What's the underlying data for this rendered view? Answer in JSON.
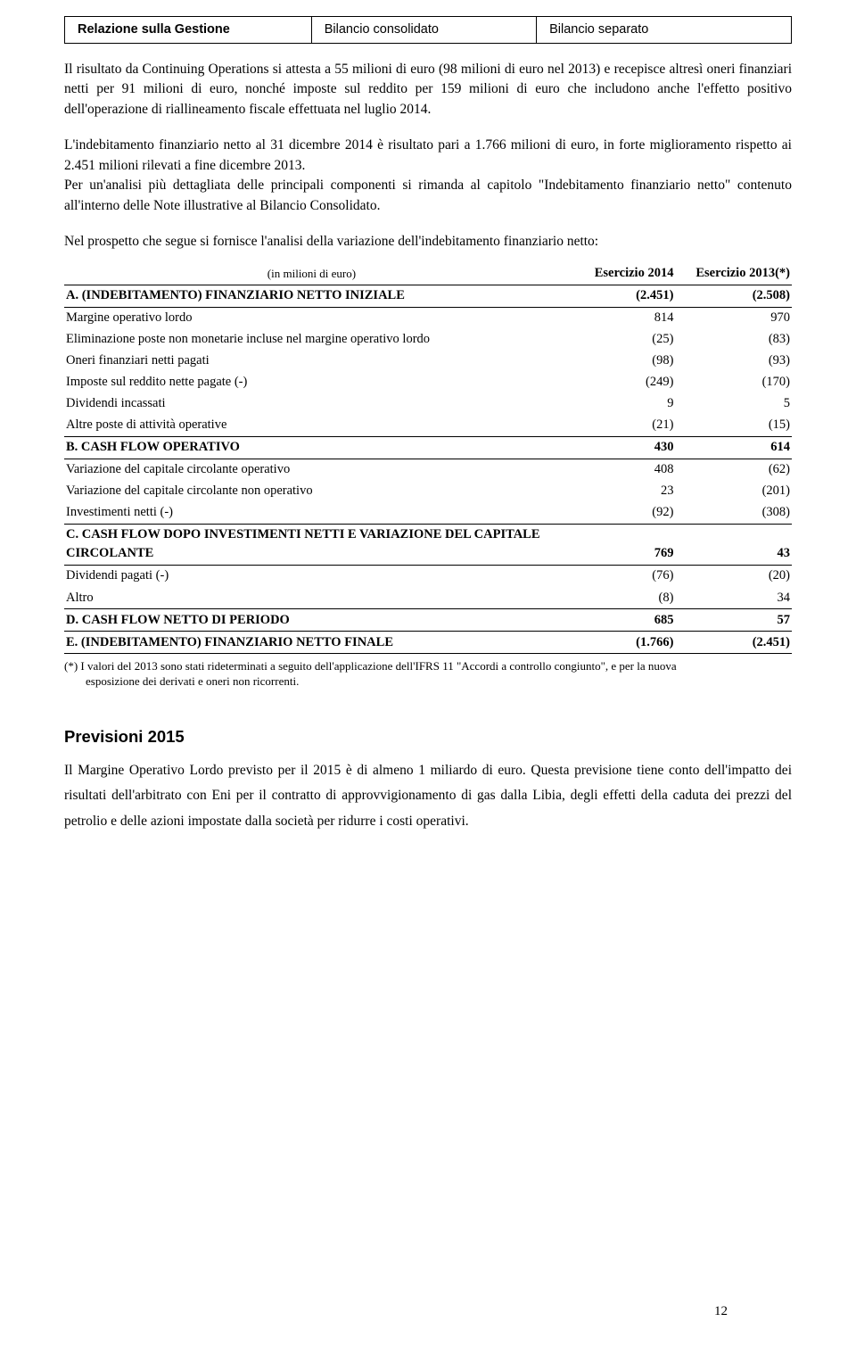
{
  "nav": {
    "tab1": "Relazione sulla Gestione",
    "tab2": "Bilancio consolidato",
    "tab3": "Bilancio separato"
  },
  "para1": "Il risultato da Continuing Operations si attesta a 55 milioni di euro (98 milioni di euro nel 2013) e recepisce altresì oneri finanziari netti per 91 milioni di euro, nonché imposte sul reddito per 159 milioni di euro che includono anche l'effetto positivo dell'operazione di riallineamento fiscale effettuata nel luglio 2014.",
  "para2": "L'indebitamento finanziario netto al 31 dicembre 2014 è risultato pari a 1.766 milioni di euro, in forte miglioramento rispetto ai 2.451 milioni rilevati a fine dicembre 2013.",
  "para3": "Per un'analisi più dettagliata delle principali componenti si rimanda al capitolo \"Indebitamento finanziario netto\" contenuto all'interno delle Note illustrative al Bilancio Consolidato.",
  "intro": "Nel prospetto che segue si fornisce l'analisi della variazione dell'indebitamento finanziario netto:",
  "table": {
    "header_label": "(in milioni di euro)",
    "col1": "Esercizio 2014",
    "col2": "Esercizio 2013(*)",
    "rows": [
      {
        "label": "A. (INDEBITAMENTO) FINANZIARIO NETTO INIZIALE",
        "v1": "(2.451)",
        "v2": "(2.508)",
        "bold": true,
        "topline": true
      },
      {
        "label": "Margine operativo lordo",
        "v1": "814",
        "v2": "970",
        "topline": true
      },
      {
        "label": "Eliminazione poste non monetarie incluse nel margine operativo lordo",
        "v1": "(25)",
        "v2": "(83)"
      },
      {
        "label": "Oneri finanziari netti pagati",
        "v1": "(98)",
        "v2": "(93)"
      },
      {
        "label": "Imposte sul reddito nette pagate (-)",
        "v1": "(249)",
        "v2": "(170)"
      },
      {
        "label": "Dividendi incassati",
        "v1": "9",
        "v2": "5"
      },
      {
        "label": "Altre poste di attività operative",
        "v1": "(21)",
        "v2": "(15)",
        "underline": true
      },
      {
        "label": "B. CASH FLOW OPERATIVO",
        "v1": "430",
        "v2": "614",
        "bold": true
      },
      {
        "label": "Variazione del capitale circolante operativo",
        "v1": "408",
        "v2": "(62)",
        "topline": true
      },
      {
        "label": "Variazione del capitale circolante non operativo",
        "v1": "23",
        "v2": "(201)"
      },
      {
        "label": "Investimenti netti (-)",
        "v1": "(92)",
        "v2": "(308)",
        "underline": true
      },
      {
        "label": "C. CASH FLOW DOPO INVESTIMENTI NETTI E VARIAZIONE DEL CAPITALE CIRCOLANTE",
        "v1": "769",
        "v2": "43",
        "bold": true
      },
      {
        "label": "Dividendi pagati (-)",
        "v1": "(76)",
        "v2": "(20)",
        "topline": true
      },
      {
        "label": "Altro",
        "v1": "(8)",
        "v2": "34",
        "underline": true
      },
      {
        "label": "D. CASH FLOW NETTO DI PERIODO",
        "v1": "685",
        "v2": "57",
        "bold": true,
        "underline": true
      },
      {
        "label": "E. (INDEBITAMENTO) FINANZIARIO NETTO FINALE",
        "v1": "(1.766)",
        "v2": "(2.451)",
        "bold": true,
        "underline": true
      }
    ]
  },
  "footnote_line1": "(*) I valori del 2013 sono stati rideterminati a seguito dell'applicazione dell'IFRS 11 \"Accordi a controllo congiunto\", e per la nuova",
  "footnote_line2": "esposizione dei derivati e oneri non ricorrenti.",
  "section_title": "Previsioni 2015",
  "forecast": "Il Margine Operativo Lordo previsto per il 2015 è di almeno 1 miliardo di euro. Questa previsione tiene conto dell'impatto dei risultati dell'arbitrato con Eni per il contratto di approvvigionamento di gas dalla Libia, degli effetti della caduta dei prezzi del petrolio e delle azioni impostate dalla società per ridurre i costi operativi.",
  "page_number": "12"
}
